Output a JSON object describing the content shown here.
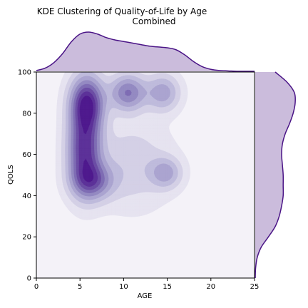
{
  "chart_data": {
    "type": "kde-joint",
    "title": "KDE Clustering of Quality-of-Life by Age",
    "subtitle": "Combined",
    "xlabel": "AGE",
    "ylabel": "QOLS",
    "xlim": [
      0,
      25
    ],
    "ylim": [
      0,
      100
    ],
    "xticks": [
      0,
      5,
      10,
      15,
      20,
      25
    ],
    "yticks": [
      0,
      20,
      40,
      60,
      80,
      100
    ],
    "grid": false,
    "colors": {
      "background": "#f4f2f8",
      "line": "#4a1486",
      "marginal_fill": "#cbbcdc",
      "levels": [
        "#e6e3f0",
        "#d4d0e6",
        "#bfbbdc",
        "#aba4d0",
        "#948ac2",
        "#7f6db4",
        "#6c4ea5",
        "#5d3299",
        "#4f1a8e"
      ]
    },
    "density_clusters": [
      {
        "cx": 5.8,
        "cy": 85,
        "sx": 1.3,
        "sy": 9,
        "w": 1.0
      },
      {
        "cx": 5.5,
        "cy": 62,
        "sx": 1.3,
        "sy": 13,
        "w": 0.95
      },
      {
        "cx": 6.5,
        "cy": 47,
        "sx": 1.6,
        "sy": 6,
        "w": 0.6
      },
      {
        "cx": 10.5,
        "cy": 90,
        "sx": 1.4,
        "sy": 6,
        "w": 0.65
      },
      {
        "cx": 14.5,
        "cy": 90,
        "sx": 1.3,
        "sy": 6,
        "w": 0.45
      },
      {
        "cx": 14.8,
        "cy": 51,
        "sx": 1.2,
        "sy": 5,
        "w": 0.4
      },
      {
        "cx": 11,
        "cy": 55,
        "sx": 3,
        "sy": 14,
        "w": 0.22
      }
    ],
    "marginal_x": {
      "x": [
        0,
        1,
        2,
        3,
        4,
        5,
        6,
        7,
        8,
        9,
        10,
        11,
        12,
        13,
        14,
        15,
        16,
        17,
        18,
        19,
        20,
        21,
        22,
        23,
        24,
        25
      ],
      "density": [
        0.02,
        0.08,
        0.22,
        0.45,
        0.75,
        0.95,
        1.0,
        0.95,
        0.86,
        0.8,
        0.76,
        0.72,
        0.68,
        0.64,
        0.62,
        0.6,
        0.55,
        0.42,
        0.25,
        0.12,
        0.05,
        0.02,
        0.01,
        0.0,
        0.0,
        0.0
      ]
    },
    "marginal_y": {
      "y": [
        0,
        5,
        10,
        15,
        20,
        25,
        30,
        35,
        40,
        45,
        50,
        55,
        60,
        65,
        70,
        75,
        80,
        85,
        90,
        95,
        100
      ],
      "density": [
        0.0,
        0.01,
        0.05,
        0.15,
        0.33,
        0.5,
        0.6,
        0.66,
        0.7,
        0.7,
        0.7,
        0.68,
        0.66,
        0.68,
        0.75,
        0.86,
        0.95,
        1.0,
        0.98,
        0.8,
        0.5
      ]
    }
  }
}
